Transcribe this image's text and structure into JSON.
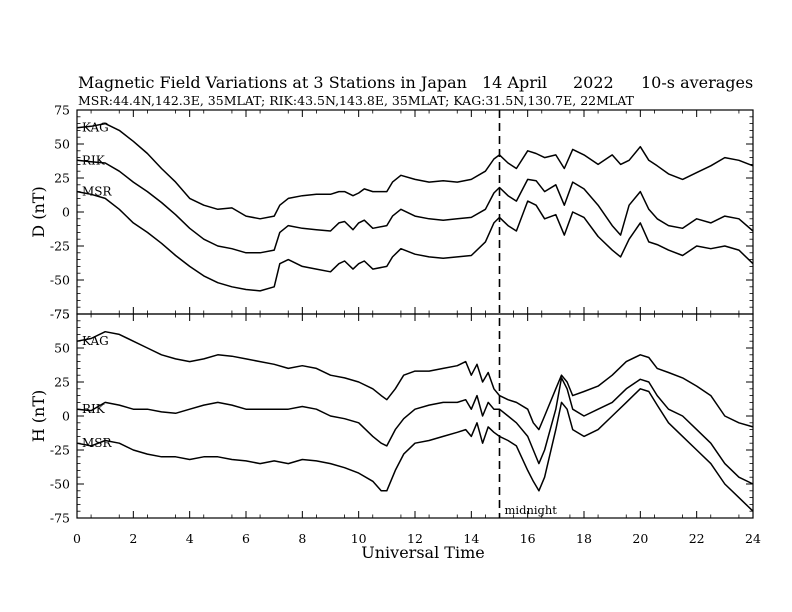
{
  "chart_data": {
    "type": "line",
    "title": "Magnetic Field Variations at 3 Stations in Japan",
    "date": "14  April",
    "year": "2022",
    "averaging": "10-s averages",
    "subtitle": "MSR:44.4N,142.3E, 35MLAT;   RIK:43.5N,143.8E, 35MLAT;   KAG:31.5N,130.7E, 22MLAT",
    "xlabel": "Universal Time",
    "xlim": [
      0,
      24
    ],
    "xticks": [
      0,
      2,
      4,
      6,
      8,
      10,
      12,
      14,
      16,
      18,
      20,
      22,
      24
    ],
    "marker": {
      "x": 15,
      "label": "midnight",
      "style": "dashed"
    },
    "grid": false,
    "panels": [
      {
        "ylabel": "D (nT)",
        "ylim": [
          -75,
          75
        ],
        "yticks": [
          75,
          50,
          25,
          0,
          -25,
          -50,
          -75
        ],
        "series": [
          {
            "name": "KAG",
            "x": [
              0,
              0.5,
              1,
              1.5,
              2,
              2.5,
              3,
              3.5,
              4,
              4.5,
              5,
              5.5,
              6,
              6.5,
              7,
              7.2,
              7.5,
              8,
              8.5,
              9,
              9.3,
              9.5,
              9.8,
              10,
              10.2,
              10.5,
              11,
              11.2,
              11.5,
              12,
              12.5,
              13,
              13.5,
              14,
              14.5,
              14.8,
              15,
              15.3,
              15.6,
              16,
              16.3,
              16.6,
              17,
              17.3,
              17.6,
              18,
              18.5,
              19,
              19.3,
              19.6,
              20,
              20.3,
              20.6,
              21,
              21.5,
              22,
              22.5,
              23,
              23.5,
              24
            ],
            "values": [
              62,
              63,
              65,
              60,
              52,
              43,
              32,
              22,
              10,
              5,
              2,
              3,
              -3,
              -5,
              -3,
              5,
              10,
              12,
              13,
              13,
              15,
              15,
              12,
              14,
              17,
              15,
              15,
              22,
              27,
              24,
              22,
              23,
              22,
              24,
              30,
              39,
              42,
              36,
              32,
              45,
              43,
              40,
              42,
              32,
              46,
              42,
              35,
              42,
              35,
              38,
              48,
              38,
              34,
              28,
              24,
              29,
              34,
              40,
              38,
              34
            ]
          },
          {
            "name": "RIK",
            "x": [
              0,
              0.5,
              1,
              1.5,
              2,
              2.5,
              3,
              3.5,
              4,
              4.5,
              5,
              5.5,
              6,
              6.5,
              7,
              7.2,
              7.5,
              8,
              8.5,
              9,
              9.3,
              9.5,
              9.8,
              10,
              10.2,
              10.5,
              11,
              11.2,
              11.5,
              12,
              12.5,
              13,
              13.5,
              14,
              14.5,
              14.8,
              15,
              15.3,
              15.6,
              16,
              16.3,
              16.6,
              17,
              17.3,
              17.6,
              18,
              18.5,
              19,
              19.3,
              19.6,
              20,
              20.3,
              20.6,
              21,
              21.5,
              22,
              22.5,
              23,
              23.5,
              24
            ],
            "values": [
              38,
              37,
              36,
              30,
              22,
              15,
              7,
              -2,
              -12,
              -20,
              -25,
              -27,
              -30,
              -30,
              -28,
              -15,
              -10,
              -12,
              -13,
              -14,
              -8,
              -7,
              -13,
              -8,
              -6,
              -12,
              -10,
              -3,
              2,
              -3,
              -5,
              -6,
              -5,
              -4,
              2,
              14,
              18,
              12,
              8,
              24,
              23,
              15,
              20,
              5,
              22,
              17,
              5,
              -10,
              -17,
              5,
              15,
              2,
              -5,
              -10,
              -12,
              -5,
              -8,
              -3,
              -5,
              -14
            ]
          },
          {
            "name": "MSR",
            "x": [
              0,
              0.5,
              1,
              1.5,
              2,
              2.5,
              3,
              3.5,
              4,
              4.5,
              5,
              5.5,
              6,
              6.5,
              7,
              7.2,
              7.5,
              8,
              8.5,
              9,
              9.3,
              9.5,
              9.8,
              10,
              10.2,
              10.5,
              11,
              11.2,
              11.5,
              12,
              12.5,
              13,
              13.5,
              14,
              14.5,
              14.8,
              15,
              15.3,
              15.6,
              16,
              16.3,
              16.6,
              17,
              17.3,
              17.6,
              18,
              18.5,
              19,
              19.3,
              19.6,
              20,
              20.3,
              20.6,
              21,
              21.5,
              22,
              22.5,
              23,
              23.5,
              24
            ],
            "values": [
              15,
              13,
              10,
              2,
              -8,
              -15,
              -23,
              -32,
              -40,
              -47,
              -52,
              -55,
              -57,
              -58,
              -55,
              -38,
              -35,
              -40,
              -42,
              -44,
              -38,
              -36,
              -42,
              -38,
              -36,
              -42,
              -40,
              -33,
              -27,
              -31,
              -33,
              -34,
              -33,
              -32,
              -22,
              -8,
              -4,
              -10,
              -14,
              8,
              5,
              -5,
              -2,
              -17,
              0,
              -4,
              -18,
              -28,
              -33,
              -20,
              -8,
              -22,
              -24,
              -28,
              -32,
              -25,
              -27,
              -25,
              -28,
              -38
            ]
          }
        ]
      },
      {
        "ylabel": "H (nT)",
        "ylim": [
          -75,
          75
        ],
        "yticks": [
          75,
          50,
          25,
          0,
          -25,
          -50,
          -75
        ],
        "series": [
          {
            "name": "KAG",
            "x": [
              0,
              0.5,
              1,
              1.5,
              2,
              2.5,
              3,
              3.5,
              4,
              4.5,
              5,
              5.5,
              6,
              6.5,
              7,
              7.5,
              8,
              8.5,
              9,
              9.5,
              10,
              10.5,
              10.8,
              11,
              11.3,
              11.6,
              12,
              12.5,
              13,
              13.5,
              13.8,
              14,
              14.2,
              14.4,
              14.6,
              14.8,
              15,
              15.3,
              15.6,
              16,
              16.2,
              16.4,
              16.6,
              17,
              17.2,
              17.4,
              17.6,
              18,
              18.5,
              19,
              19.5,
              20,
              20.3,
              20.6,
              21,
              21.5,
              22,
              22.5,
              23,
              23.5,
              24
            ],
            "values": [
              55,
              57,
              62,
              60,
              55,
              50,
              45,
              42,
              40,
              42,
              45,
              44,
              42,
              40,
              38,
              35,
              37,
              35,
              30,
              28,
              25,
              20,
              15,
              12,
              20,
              30,
              33,
              33,
              35,
              37,
              40,
              30,
              38,
              25,
              32,
              20,
              15,
              12,
              10,
              5,
              -5,
              -10,
              0,
              20,
              30,
              25,
              15,
              18,
              22,
              30,
              40,
              45,
              43,
              35,
              32,
              28,
              22,
              15,
              0,
              -5,
              -8
            ]
          },
          {
            "name": "RIK",
            "x": [
              0,
              0.5,
              1,
              1.5,
              2,
              2.5,
              3,
              3.5,
              4,
              4.5,
              5,
              5.5,
              6,
              6.5,
              7,
              7.5,
              8,
              8.5,
              9,
              9.5,
              10,
              10.5,
              10.8,
              11,
              11.3,
              11.6,
              12,
              12.5,
              13,
              13.5,
              13.8,
              14,
              14.2,
              14.4,
              14.6,
              14.8,
              15,
              15.3,
              15.6,
              16,
              16.2,
              16.4,
              16.6,
              17,
              17.2,
              17.4,
              17.6,
              18,
              18.5,
              19,
              19.5,
              20,
              20.3,
              20.6,
              21,
              21.5,
              22,
              22.5,
              23,
              23.5,
              24
            ],
            "values": [
              5,
              4,
              10,
              8,
              5,
              5,
              3,
              2,
              5,
              8,
              10,
              8,
              5,
              5,
              5,
              5,
              7,
              5,
              0,
              -2,
              -5,
              -15,
              -20,
              -22,
              -10,
              -2,
              5,
              8,
              10,
              10,
              12,
              5,
              15,
              0,
              10,
              5,
              5,
              0,
              -5,
              -15,
              -25,
              -35,
              -25,
              5,
              28,
              20,
              5,
              0,
              5,
              10,
              20,
              27,
              25,
              15,
              5,
              0,
              -10,
              -20,
              -35,
              -45,
              -50
            ]
          },
          {
            "name": "MSR",
            "x": [
              0,
              0.5,
              1,
              1.5,
              2,
              2.5,
              3,
              3.5,
              4,
              4.5,
              5,
              5.5,
              6,
              6.5,
              7,
              7.5,
              8,
              8.5,
              9,
              9.5,
              10,
              10.5,
              10.8,
              11,
              11.3,
              11.6,
              12,
              12.5,
              13,
              13.5,
              13.8,
              14,
              14.2,
              14.4,
              14.6,
              14.8,
              15,
              15.3,
              15.6,
              16,
              16.2,
              16.4,
              16.6,
              17,
              17.2,
              17.4,
              17.6,
              18,
              18.5,
              19,
              19.5,
              20,
              20.3,
              20.6,
              21,
              21.5,
              22,
              22.5,
              23,
              23.5,
              24
            ],
            "values": [
              -20,
              -22,
              -18,
              -20,
              -25,
              -28,
              -30,
              -30,
              -32,
              -30,
              -30,
              -32,
              -33,
              -35,
              -33,
              -35,
              -32,
              -33,
              -35,
              -38,
              -42,
              -48,
              -55,
              -55,
              -40,
              -28,
              -20,
              -18,
              -15,
              -12,
              -10,
              -15,
              -5,
              -20,
              -8,
              -12,
              -15,
              -18,
              -22,
              -40,
              -48,
              -55,
              -45,
              -10,
              10,
              5,
              -10,
              -15,
              -10,
              0,
              10,
              20,
              18,
              8,
              -5,
              -15,
              -25,
              -35,
              -50,
              -60,
              -70
            ]
          }
        ]
      }
    ]
  }
}
